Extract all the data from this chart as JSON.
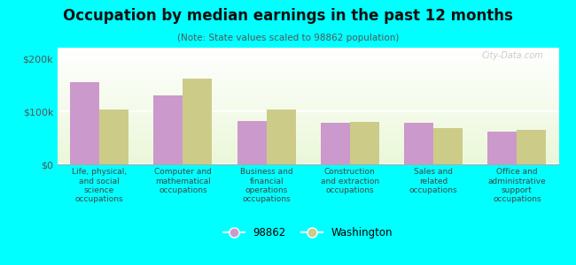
{
  "title": "Occupation by median earnings in the past 12 months",
  "subtitle": "(Note: State values scaled to 98862 population)",
  "background_color": "#00FFFF",
  "categories": [
    "Life, physical,\nand social\nscience\noccupations",
    "Computer and\nmathematical\noccupations",
    "Business and\nfinancial\noperations\noccupations",
    "Construction\nand extraction\noccupations",
    "Sales and\nrelated\noccupations",
    "Office and\nadministrative\nsupport\noccupations"
  ],
  "values_98862": [
    155000,
    130000,
    82000,
    78000,
    78000,
    62000
  ],
  "values_washington": [
    103000,
    162000,
    103000,
    80000,
    68000,
    65000
  ],
  "color_98862": "#CC99CC",
  "color_washington": "#CCCC88",
  "ylim": [
    0,
    220000
  ],
  "yticks": [
    0,
    100000,
    200000
  ],
  "ytick_labels": [
    "$0",
    "$100k",
    "$200k"
  ],
  "legend_98862": "98862",
  "legend_washington": "Washington",
  "watermark": "City-Data.com"
}
